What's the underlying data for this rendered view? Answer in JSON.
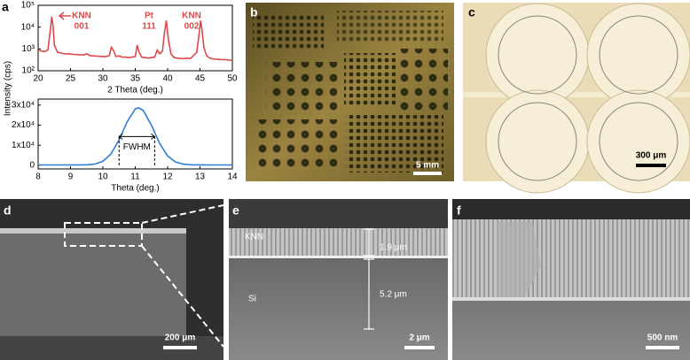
{
  "chart_data": [
    {
      "type": "line",
      "ylabel": "Intensity (cps)",
      "xlabel": "2 Theta (deg.)",
      "color": "#e0474c",
      "log_y": true,
      "xlim": [
        20,
        50
      ],
      "xticks": [
        20,
        25,
        30,
        35,
        40,
        45,
        50
      ],
      "ylim": [
        100,
        100000
      ],
      "yticks": [
        {
          "value": 100,
          "label": "10²"
        },
        {
          "value": 1000,
          "label": "10³"
        },
        {
          "value": 10000,
          "label": "10⁴"
        },
        {
          "value": 100000,
          "label": "10⁵"
        }
      ],
      "annotations": [
        {
          "lines": [
            "KNN",
            "001"
          ]
        },
        {
          "lines": [
            "Pt",
            "111"
          ]
        },
        {
          "lines": [
            "KNN",
            "002"
          ]
        }
      ],
      "x": [
        20,
        20.5,
        21,
        21.5,
        21.9,
        22.1,
        22.3,
        22.5,
        23,
        23.5,
        24,
        24.5,
        25,
        25.5,
        26,
        26.5,
        27,
        27.5,
        28,
        28.5,
        29,
        29.5,
        30,
        30.5,
        31,
        31.3,
        31.6,
        32,
        32.5,
        33,
        33.5,
        34,
        34.5,
        35,
        35.3,
        35.6,
        36,
        36.5,
        37,
        37.5,
        38,
        38.4,
        38.8,
        39.2,
        39.5,
        39.8,
        40.1,
        40.5,
        41,
        41.5,
        42,
        42.5,
        43,
        43.5,
        44,
        44.5,
        44.9,
        45.1,
        45.3,
        45.6,
        46,
        46.5,
        47,
        47.5,
        48,
        48.5,
        49,
        49.5,
        50
      ],
      "values": [
        900,
        800,
        750,
        900,
        8000,
        30000,
        12000,
        1500,
        700,
        650,
        600,
        600,
        580,
        560,
        550,
        540,
        520,
        600,
        500,
        480,
        470,
        460,
        450,
        450,
        500,
        1200,
        900,
        450,
        480,
        420,
        420,
        400,
        420,
        450,
        1500,
        700,
        420,
        400,
        380,
        400,
        420,
        900,
        600,
        800,
        5000,
        20000,
        3000,
        600,
        400,
        380,
        370,
        360,
        380,
        360,
        500,
        700,
        6000,
        20000,
        8000,
        1200,
        500,
        380,
        350,
        340,
        330,
        320,
        320,
        310,
        300
      ]
    },
    {
      "type": "line",
      "xlabel": "Theta (deg.)",
      "color": "#2f7fd6",
      "log_y": false,
      "xlim": [
        8,
        14
      ],
      "xticks": [
        8,
        9,
        10,
        11,
        12,
        13,
        14
      ],
      "ylim": [
        -1800,
        33000
      ],
      "yticks": [
        0,
        {
          "value": 10000,
          "label": "1x10⁴"
        },
        {
          "value": 20000,
          "label": "2x10⁴"
        },
        {
          "value": 30000,
          "label": "3x10⁴"
        }
      ],
      "fwhm_label": "FWHM",
      "fwhm": [
        10.5,
        11.6
      ],
      "x": [
        8,
        8.25,
        8.5,
        8.75,
        9,
        9.25,
        9.5,
        9.75,
        10,
        10.25,
        10.5,
        10.75,
        11,
        11.1,
        11.25,
        11.5,
        11.75,
        12,
        12.25,
        12.5,
        12.75,
        13,
        13.25,
        13.5,
        13.75,
        14
      ],
      "values": [
        200,
        200,
        200,
        200,
        201,
        211,
        280,
        636,
        1976,
        5636,
        12680,
        21720,
        28050,
        28700,
        27270,
        19950,
        11010,
        4650,
        1580,
        517,
        256,
        208,
        200,
        200,
        200,
        200
      ]
    }
  ],
  "panels": [
    {
      "label": "a"
    },
    {
      "label": "b",
      "scale_bar": "5 mm"
    },
    {
      "label": "c",
      "scale_bar": "300 μm"
    },
    {
      "label": "d",
      "scale_bar": "200 μm"
    },
    {
      "label": "e",
      "scale_bar": "2 μm",
      "layers": [
        "KNN",
        "Si"
      ],
      "thickness": [
        "1.9 μm",
        "5.2 μm"
      ]
    },
    {
      "label": "f",
      "scale_bar": "500 nm"
    }
  ]
}
